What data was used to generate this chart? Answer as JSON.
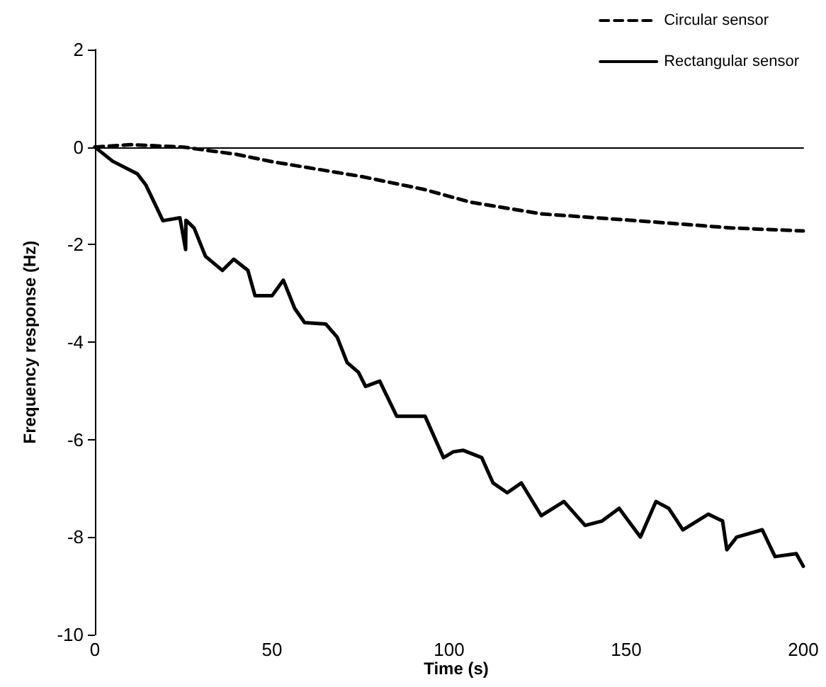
{
  "chart_data": {
    "type": "line",
    "xlabel": "Time (s)",
    "ylabel": "Frequency response (Hz)",
    "xlim": [
      0,
      200
    ],
    "xticks": [
      0,
      50,
      100,
      150,
      200
    ],
    "ylim": [
      -10,
      2
    ],
    "yticks": [
      2,
      0,
      -2,
      -4,
      -6,
      -8,
      -10
    ],
    "legend": "top right",
    "marker": "none",
    "series": [
      {
        "name": "Circular sensor",
        "color": "#000000",
        "line_style": "dashed",
        "x": [
          0,
          10,
          25,
          40,
          50,
          60,
          75,
          93,
          106,
          126,
          153,
          180,
          200
        ],
        "values": [
          0,
          0.05,
          0,
          -0.15,
          -0.3,
          -0.42,
          -0.6,
          -0.87,
          -1.13,
          -1.37,
          -1.51,
          -1.66,
          -1.72
        ]
      },
      {
        "name": "Rectangular sensor",
        "color": "#000000",
        "line_style": "solid",
        "x": [
          0,
          5,
          12,
          14.4,
          19.2,
          24,
          25.6,
          25.7,
          28,
          31.2,
          36,
          39.2,
          43.2,
          45.2,
          50,
          53.2,
          56.4,
          59.2,
          65.2,
          68.4,
          71.2,
          74.4,
          76.4,
          80.4,
          85.2,
          93.2,
          98.4,
          101.2,
          104,
          109.2,
          112.4,
          116.4,
          120.4,
          126,
          132.4,
          138.4,
          143.2,
          148,
          154,
          158.4,
          162,
          166,
          173.2,
          177.2,
          178.4,
          181.2,
          188.4,
          192,
          198,
          200
        ],
        "values": [
          0,
          -0.29,
          -0.55,
          -0.78,
          -1.51,
          -1.45,
          -2.1,
          -1.5,
          -1.66,
          -2.24,
          -2.53,
          -2.3,
          -2.53,
          -3.05,
          -3.05,
          -2.73,
          -3.31,
          -3.6,
          -3.63,
          -3.9,
          -4.42,
          -4.62,
          -4.91,
          -4.8,
          -5.52,
          -5.52,
          -6.37,
          -6.25,
          -6.22,
          -6.37,
          -6.89,
          -7.09,
          -6.89,
          -7.56,
          -7.27,
          -7.76,
          -7.67,
          -7.41,
          -8.0,
          -7.27,
          -7.41,
          -7.85,
          -7.53,
          -7.67,
          -8.26,
          -8.0,
          -7.85,
          -8.4,
          -8.34,
          -8.6
        ]
      }
    ]
  }
}
